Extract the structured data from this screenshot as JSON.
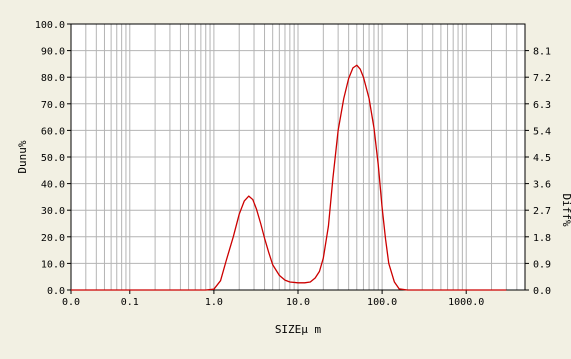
{
  "chart_data": {
    "type": "line",
    "title": "",
    "xlabel": "SIZEμ m",
    "ylabel": "Dunu%",
    "ylabel_right": "Diff%",
    "x_scale": "log",
    "xlim": [
      0.02,
      5000
    ],
    "ylim": [
      0,
      100
    ],
    "ylim_right": [
      0,
      9
    ],
    "x_tick_values": [
      0.02,
      0.1,
      1,
      10,
      100,
      1000
    ],
    "x_tick_labels": [
      "0.0",
      "0.1",
      "1.0",
      "10.0",
      "100.0",
      "1000.0"
    ],
    "y_tick_values": [
      0,
      10,
      20,
      30,
      40,
      50,
      60,
      70,
      80,
      90,
      100
    ],
    "y_tick_labels": [
      "0.0",
      "10.0",
      "20.0",
      "30.0",
      "40.0",
      "50.0",
      "60.0",
      "70.0",
      "80.0",
      "90.0",
      "100.0"
    ],
    "y_right_tick_values": [
      0,
      0.9,
      1.8,
      2.7,
      3.6,
      4.5,
      5.4,
      6.3,
      7.2,
      8.1
    ],
    "y_right_tick_labels": [
      "0.0",
      "0.9",
      "1.8",
      "2.7",
      "3.6",
      "4.5",
      "5.4",
      "6.3",
      "7.2",
      "8.1"
    ],
    "grid": true,
    "series": [
      {
        "color": "#cc0000",
        "x": [
          0.02,
          0.05,
          0.1,
          0.3,
          0.8,
          1.0,
          1.2,
          1.4,
          1.7,
          2.0,
          2.3,
          2.6,
          2.9,
          3.2,
          3.6,
          4.0,
          4.5,
          5.0,
          6.0,
          7.0,
          8.0,
          10.0,
          12.0,
          14.0,
          16.0,
          18.0,
          20.0,
          23.0,
          26.0,
          30.0,
          35.0,
          40.0,
          45.0,
          50.0,
          55.0,
          60.0,
          70.0,
          80.0,
          90.0,
          100.0,
          110.0,
          120.0,
          140.0,
          160.0,
          200.0,
          500.0,
          1000.0,
          3000.0
        ],
        "y": [
          0,
          0,
          0,
          0,
          0,
          0.3,
          3.5,
          11.0,
          20.0,
          28.5,
          33.5,
          35.3,
          34.0,
          30.5,
          25.0,
          19.5,
          14.0,
          9.5,
          5.5,
          3.7,
          3.0,
          2.7,
          2.7,
          3.0,
          4.5,
          7.0,
          12.0,
          24.0,
          42.0,
          60.0,
          72.0,
          79.5,
          83.5,
          84.5,
          83.0,
          80.0,
          72.0,
          61.0,
          47.0,
          31.0,
          19.0,
          10.0,
          3.0,
          0.4,
          0,
          0,
          0,
          0
        ]
      }
    ]
  }
}
